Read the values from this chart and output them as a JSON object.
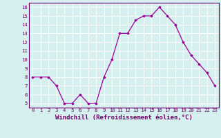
{
  "x": [
    0,
    1,
    2,
    3,
    4,
    5,
    6,
    7,
    8,
    9,
    10,
    11,
    12,
    13,
    14,
    15,
    16,
    17,
    18,
    19,
    20,
    21,
    22,
    23
  ],
  "y": [
    8,
    8,
    8,
    7,
    5,
    5,
    6,
    5,
    5,
    8,
    10,
    13,
    13,
    14.5,
    15,
    15,
    16,
    15,
    14,
    12,
    10.5,
    9.5,
    8.5,
    7
  ],
  "line_color": "#990099",
  "marker": "D",
  "marker_size": 1.8,
  "linewidth": 0.9,
  "xlabel": "Windchill (Refroidissement éolien,°C)",
  "xlabel_fontsize": 6.5,
  "ylim": [
    4.5,
    16.5
  ],
  "yticks": [
    5,
    6,
    7,
    8,
    9,
    10,
    11,
    12,
    13,
    14,
    15,
    16
  ],
  "xticks": [
    0,
    1,
    2,
    3,
    4,
    5,
    6,
    7,
    8,
    9,
    10,
    11,
    12,
    13,
    14,
    15,
    16,
    17,
    18,
    19,
    20,
    21,
    22,
    23
  ],
  "tick_fontsize": 5.2,
  "background_color": "#d5f0ee",
  "grid_color": "#b8e0dc",
  "axis_color": "#660066",
  "border_color": "#660066"
}
